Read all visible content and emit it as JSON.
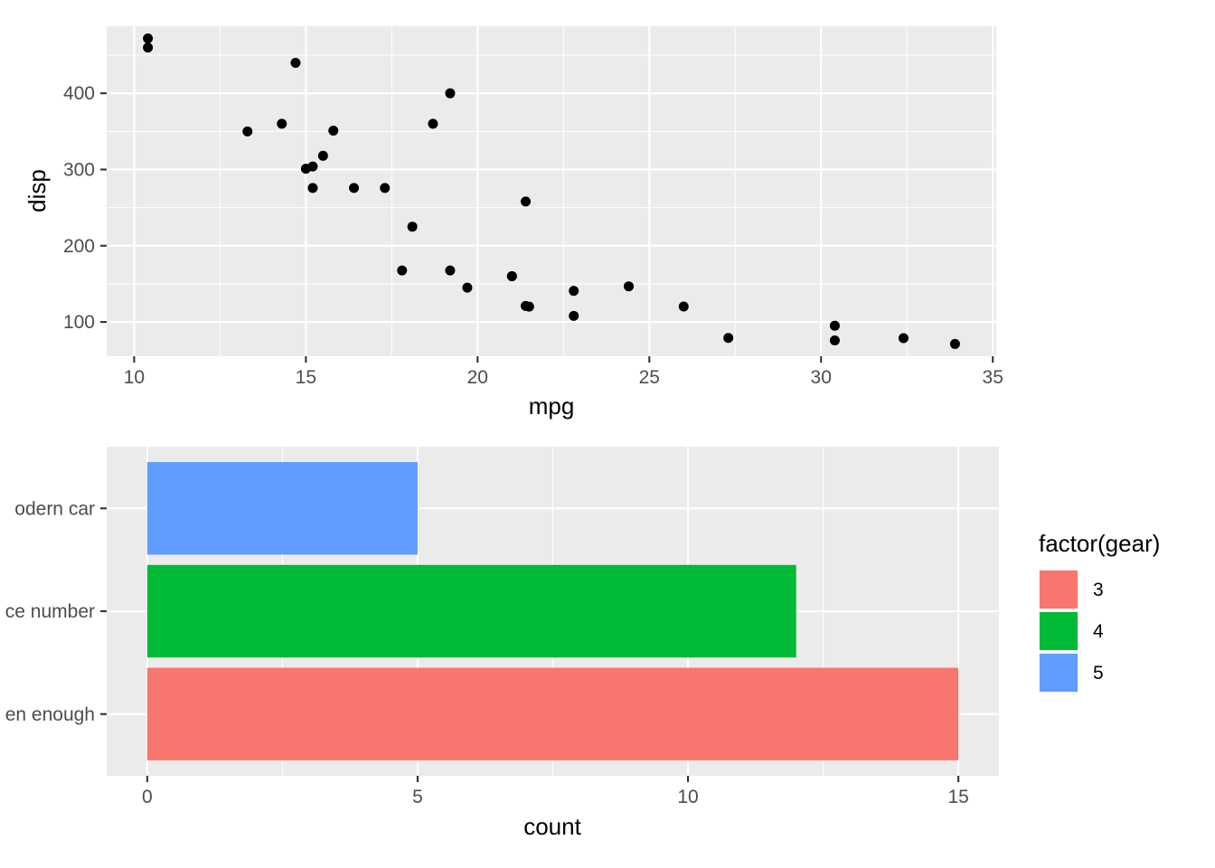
{
  "chart_data": [
    {
      "type": "scatter",
      "xlabel": "mpg",
      "ylabel": "disp",
      "xlim": [
        9.2,
        35.1
      ],
      "ylim": [
        55,
        488
      ],
      "xticks": [
        10,
        15,
        20,
        25,
        30,
        35
      ],
      "yticks": [
        100,
        200,
        300,
        400
      ],
      "grid": true,
      "color": "#000000",
      "points": [
        {
          "x": 10.4,
          "y": 472
        },
        {
          "x": 10.4,
          "y": 460
        },
        {
          "x": 14.7,
          "y": 440
        },
        {
          "x": 19.2,
          "y": 400
        },
        {
          "x": 13.3,
          "y": 350
        },
        {
          "x": 14.3,
          "y": 360
        },
        {
          "x": 15.8,
          "y": 351
        },
        {
          "x": 18.7,
          "y": 360
        },
        {
          "x": 15.5,
          "y": 318
        },
        {
          "x": 15.0,
          "y": 301
        },
        {
          "x": 15.2,
          "y": 304
        },
        {
          "x": 15.2,
          "y": 275.8
        },
        {
          "x": 16.4,
          "y": 275.8
        },
        {
          "x": 17.3,
          "y": 275.8
        },
        {
          "x": 21.4,
          "y": 258
        },
        {
          "x": 18.1,
          "y": 225
        },
        {
          "x": 17.8,
          "y": 167.6
        },
        {
          "x": 19.2,
          "y": 167.6
        },
        {
          "x": 21.0,
          "y": 160
        },
        {
          "x": 21.0,
          "y": 160
        },
        {
          "x": 19.7,
          "y": 145
        },
        {
          "x": 21.4,
          "y": 121
        },
        {
          "x": 21.5,
          "y": 120.1
        },
        {
          "x": 22.8,
          "y": 140.8
        },
        {
          "x": 22.8,
          "y": 108
        },
        {
          "x": 24.4,
          "y": 146.7
        },
        {
          "x": 26.0,
          "y": 120.3
        },
        {
          "x": 27.3,
          "y": 79
        },
        {
          "x": 30.4,
          "y": 95.1
        },
        {
          "x": 30.4,
          "y": 75.7
        },
        {
          "x": 32.4,
          "y": 78.7
        },
        {
          "x": 33.9,
          "y": 71.1
        }
      ]
    },
    {
      "type": "bar",
      "orientation": "horizontal",
      "xlabel": "count",
      "ylabel": "",
      "xlim": [
        -0.75,
        15.75
      ],
      "xticks": [
        0,
        5,
        10,
        15
      ],
      "grid": true,
      "categories": [
        "odern car",
        "ce number",
        "en enough"
      ],
      "series": [
        {
          "name": "5",
          "color": "#619CFF",
          "values": [
            5,
            0,
            0
          ]
        },
        {
          "name": "4",
          "color": "#00BA38",
          "values": [
            0,
            12,
            0
          ]
        },
        {
          "name": "3",
          "color": "#F8766D",
          "values": [
            0,
            0,
            15
          ]
        }
      ],
      "legend": {
        "title": "factor(gear)",
        "position": "right",
        "entries": [
          {
            "label": "3",
            "color": "#F8766D"
          },
          {
            "label": "4",
            "color": "#00BA38"
          },
          {
            "label": "5",
            "color": "#619CFF"
          }
        ]
      }
    }
  ]
}
